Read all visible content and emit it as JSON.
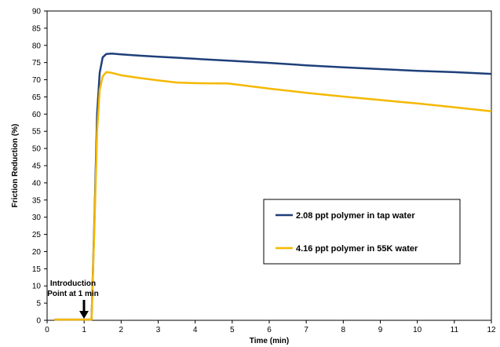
{
  "chart_data": {
    "type": "line",
    "xlabel": "Time (min)",
    "ylabel": "Friction Reduction (%)",
    "xlim": [
      0,
      12
    ],
    "ylim": [
      0,
      90
    ],
    "xticks": [
      "0",
      "1",
      "2",
      "3",
      "4",
      "5",
      "6",
      "7",
      "8",
      "9",
      "10",
      "11",
      "12"
    ],
    "yticks": [
      "0",
      "5",
      "10",
      "15",
      "20",
      "25",
      "30",
      "35",
      "40",
      "45",
      "50",
      "55",
      "60",
      "65",
      "70",
      "75",
      "80",
      "85",
      "90"
    ],
    "grid": false,
    "legend_position": "center-right",
    "series": [
      {
        "name": "2.08 ppt polymer in tap water",
        "color": "#1f3f7a",
        "x": [
          0.2,
          1.0,
          1.2,
          1.28,
          1.35,
          1.42,
          1.5,
          1.6,
          1.75,
          2.0,
          2.5,
          3.0,
          3.5,
          4.0,
          5.0,
          6.0,
          7.0,
          8.0,
          9.0,
          10.0,
          11.0,
          12.0
        ],
        "y": [
          0.2,
          0.2,
          0.2,
          30,
          60,
          72,
          76.5,
          77.5,
          77.6,
          77.4,
          77.0,
          76.7,
          76.4,
          76.1,
          75.5,
          74.9,
          74.2,
          73.6,
          73.1,
          72.6,
          72.2,
          71.7
        ]
      },
      {
        "name": "4.16 ppt polymer in 55K water",
        "color": "#f5b800",
        "x": [
          0.2,
          1.0,
          1.2,
          1.28,
          1.35,
          1.42,
          1.5,
          1.6,
          1.75,
          2.0,
          2.5,
          3.0,
          3.5,
          4.0,
          4.9,
          6.0,
          7.0,
          8.0,
          9.0,
          10.0,
          11.0,
          12.0
        ],
        "y": [
          0.2,
          0.2,
          0.2,
          28,
          55,
          67,
          71,
          72.2,
          72,
          71.3,
          70.5,
          69.8,
          69.2,
          69.0,
          68.9,
          67.4,
          66.2,
          65.1,
          64.1,
          63.1,
          62.0,
          60.8
        ]
      }
    ],
    "annotations": [
      {
        "text_lines": [
          "Introduction",
          "Point at 1 min"
        ],
        "x": 1.0,
        "arrow_to_y": 0
      }
    ]
  }
}
